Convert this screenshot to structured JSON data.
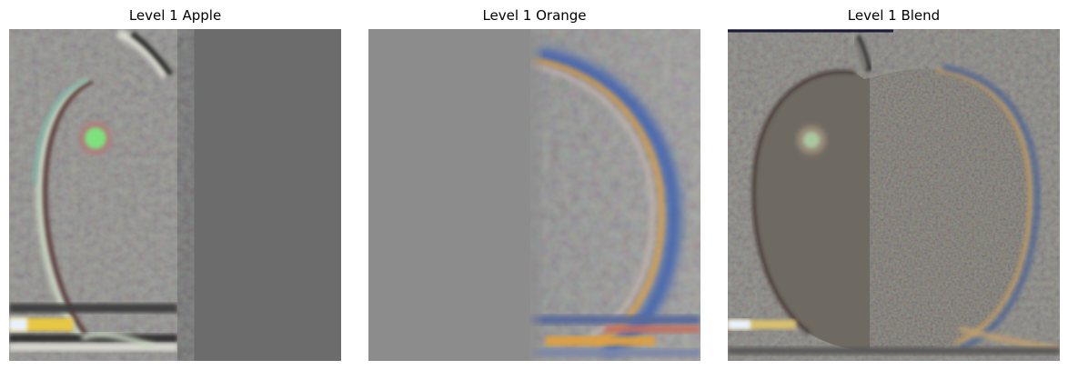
{
  "panels": [
    {
      "title": "Level 1 Apple",
      "image": "apple-laplacian-level1"
    },
    {
      "title": "Level 1 Orange",
      "image": "orange-laplacian-level1"
    },
    {
      "title": "Level 1 Blend",
      "image": "blended-laplacian-level1"
    }
  ],
  "colors": {
    "background": "#ffffff",
    "neutral_gray_left": "#6c6c6c",
    "neutral_gray_right": "#8c8c8c",
    "edge_orange": "#e0a040",
    "edge_blue": "#3a5fb0",
    "highlight_green": "#7fe07f",
    "pencil_yellow": "#e8c840"
  }
}
